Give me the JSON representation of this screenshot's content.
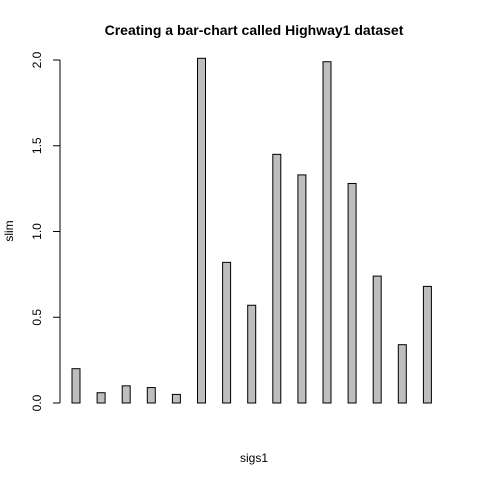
{
  "chart_data": {
    "type": "bar",
    "title": "Creating a bar-chart called Highway1 dataset",
    "xlabel": "sigs1",
    "ylabel": "slim",
    "categories": [
      "",
      "",
      "",
      "",
      "",
      "",
      "",
      "",
      "",
      "",
      "",
      "",
      "",
      "",
      ""
    ],
    "values": [
      0.2,
      0.06,
      0.1,
      0.09,
      0.05,
      2.01,
      0.82,
      0.57,
      1.45,
      1.33,
      1.99,
      1.28,
      0.74,
      0.34,
      0.68
    ],
    "ylim": [
      0,
      2.0
    ],
    "yticks": [
      0.0,
      0.5,
      1.0,
      1.5,
      2.0
    ],
    "ytick_labels": [
      "0.0",
      "0.5",
      "1.0",
      "1.5",
      "2.0"
    ],
    "grid": false,
    "bar_color": "#bebebe"
  }
}
